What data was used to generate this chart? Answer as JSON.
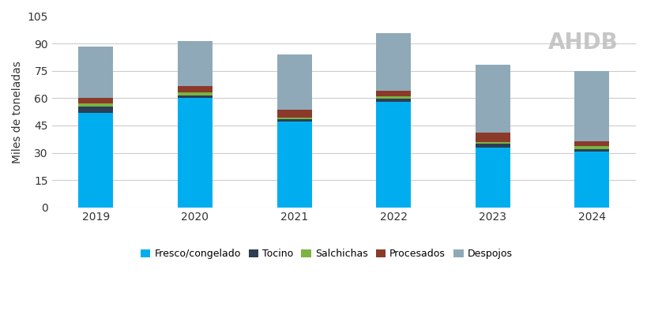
{
  "years": [
    "2019",
    "2020",
    "2021",
    "2022",
    "2023",
    "2024"
  ],
  "fresco": [
    52.0,
    60.0,
    47.0,
    58.0,
    33.0,
    30.5
  ],
  "tocino": [
    3.5,
    1.5,
    1.5,
    1.5,
    2.0,
    1.5
  ],
  "salchichas": [
    1.5,
    1.5,
    0.8,
    1.5,
    1.0,
    1.5
  ],
  "procesados": [
    3.0,
    3.5,
    4.5,
    3.0,
    5.0,
    3.0
  ],
  "despojos": [
    28.5,
    25.0,
    30.0,
    31.5,
    37.5,
    38.5
  ],
  "colors": {
    "fresco": "#00AEEF",
    "tocino": "#2B3E54",
    "salchichas": "#7CB342",
    "procesados": "#8B3A2A",
    "despojos": "#8FA9B8"
  },
  "ylabel": "Miles de toneladas",
  "ylim": [
    0,
    105
  ],
  "yticks": [
    0,
    15,
    30,
    45,
    60,
    75,
    90,
    105
  ],
  "legend_labels": [
    "Fresco/congelado",
    "Tocino",
    "Salchichas",
    "Procesados",
    "Despojos"
  ],
  "background_color": "#ffffff",
  "grid_color": "#cccccc",
  "bar_width": 0.35,
  "ahdb_text": "AHDB",
  "ahdb_color": "#c0c0c0",
  "ahdb_fontsize": 20
}
